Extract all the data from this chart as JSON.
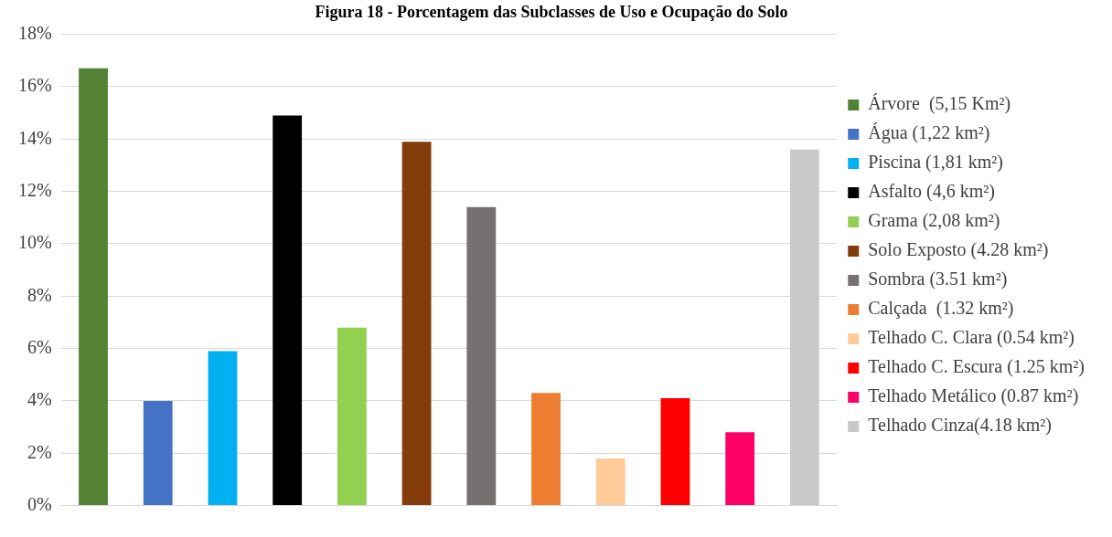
{
  "chart_data": {
    "type": "bar",
    "title": "Figura 18 - Porcentagem das Subclasses de Uso e Ocupação do Solo",
    "categories": [
      null,
      null,
      null,
      null,
      null,
      null,
      null,
      null,
      null,
      null,
      null,
      null
    ],
    "series": [
      {
        "name": "Árvore  (5,15 Km²)",
        "color": "#548235",
        "values": [
          16.7,
          null,
          null,
          null,
          null,
          null,
          null,
          null,
          null,
          null,
          null,
          null
        ]
      },
      {
        "name": "Água (1,22 km²)",
        "color": "#4472c4",
        "values": [
          null,
          4.0,
          null,
          null,
          null,
          null,
          null,
          null,
          null,
          null,
          null,
          null
        ]
      },
      {
        "name": "Piscina (1,81 km²)",
        "color": "#00b0f0",
        "values": [
          null,
          null,
          5.9,
          null,
          null,
          null,
          null,
          null,
          null,
          null,
          null,
          null
        ]
      },
      {
        "name": "Asfalto (4,6 km²)",
        "color": "#000000",
        "values": [
          null,
          null,
          null,
          14.9,
          null,
          null,
          null,
          null,
          null,
          null,
          null,
          null
        ]
      },
      {
        "name": "Grama (2,08 km²)",
        "color": "#92d050",
        "values": [
          null,
          null,
          null,
          null,
          6.8,
          null,
          null,
          null,
          null,
          null,
          null,
          null
        ]
      },
      {
        "name": "Solo Exposto (4.28 km²)",
        "color": "#843c0c",
        "values": [
          null,
          null,
          null,
          null,
          null,
          13.9,
          null,
          null,
          null,
          null,
          null,
          null
        ]
      },
      {
        "name": "Sombra (3.51 km²)",
        "color": "#767171",
        "values": [
          null,
          null,
          null,
          null,
          null,
          null,
          11.4,
          null,
          null,
          null,
          null,
          null
        ]
      },
      {
        "name": "Calçada  (1.32 km²)",
        "color": "#ed7d31",
        "values": [
          null,
          null,
          null,
          null,
          null,
          null,
          null,
          4.3,
          null,
          null,
          null,
          null
        ]
      },
      {
        "name": "Telhado C. Clara (0.54 km²)",
        "color": "#ffcc99",
        "values": [
          null,
          null,
          null,
          null,
          null,
          null,
          null,
          null,
          1.8,
          null,
          null,
          null
        ]
      },
      {
        "name": "Telhado C. Escura (1.25 km²)",
        "color": "#ff0000",
        "values": [
          null,
          null,
          null,
          null,
          null,
          null,
          null,
          null,
          null,
          4.1,
          null,
          null
        ]
      },
      {
        "name": "Telhado Metálico (0.87 km²)",
        "color": "#ff0066",
        "values": [
          null,
          null,
          null,
          null,
          null,
          null,
          null,
          null,
          null,
          null,
          2.8,
          null
        ]
      },
      {
        "name": "Telhado Cinza(4.18 km²)",
        "color": "#c9c9c9",
        "values": [
          null,
          null,
          null,
          null,
          null,
          null,
          null,
          null,
          null,
          null,
          null,
          13.6
        ]
      }
    ],
    "ylim": [
      0,
      18
    ],
    "yticks": [
      {
        "value": 0,
        "label": "0%"
      },
      {
        "value": 2,
        "label": "2%"
      },
      {
        "value": 4,
        "label": "4%"
      },
      {
        "value": 6,
        "label": "6%"
      },
      {
        "value": 8,
        "label": "8%"
      },
      {
        "value": 10,
        "label": "10%"
      },
      {
        "value": 12,
        "label": "12%"
      },
      {
        "value": 14,
        "label": "14%"
      },
      {
        "value": 16,
        "label": "16%"
      },
      {
        "value": 18,
        "label": "18%"
      }
    ],
    "grid": "y",
    "legend": "right"
  }
}
